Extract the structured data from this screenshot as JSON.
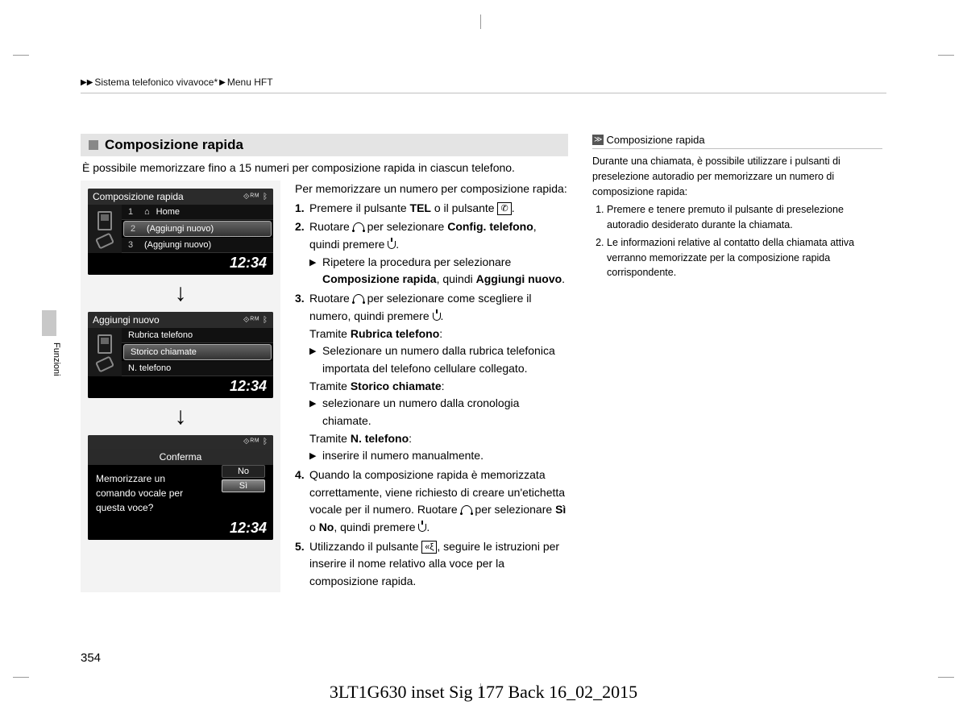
{
  "breadcrumb": {
    "a": "Sistema telefonico vivavoce*",
    "b": "Menu HFT"
  },
  "section_title": "Composizione rapida",
  "intro": "È possibile memorizzare fino a 15 numeri per composizione rapida in ciascun telefono.",
  "side_tab_label": "Funzioni",
  "page_number": "354",
  "footer": "3LT1G630 inset Sig 177 Back 16_02_2015",
  "screen1": {
    "title": "Composizione rapida",
    "icons": "⟐ᴿᴹ ᛒ",
    "r1_num": "1",
    "r1_label": "Home",
    "r2_num": "2",
    "r2_label": "(Aggiungi nuovo)",
    "r3_num": "3",
    "r3_label": "(Aggiungi nuovo)",
    "clock": "12:34"
  },
  "screen2": {
    "title": "Aggiungi nuovo",
    "icons": "⟐ᴿᴹ ᛒ",
    "r1": "Rubrica telefono",
    "r2": "Storico chiamate",
    "r3": "N. telefono",
    "clock": "12:34"
  },
  "screen3": {
    "title": "Conferma",
    "icons": "⟐ᴿᴹ ᛒ",
    "msg": "Memorizzare un comando vocale per questa voce?",
    "btn_no": "No",
    "btn_si": "Sì",
    "clock": "12:34"
  },
  "steps": {
    "lead": "Per memorizzare un numero per composizione rapida:",
    "s1_a": "Premere il pulsante ",
    "s1_b": "TEL",
    "s1_c": " o il pulsante ",
    "s2_a": "Ruotare ",
    "s2_b": " per selezionare ",
    "s2_c": "Config. telefono",
    "s2_d": ", quindi premere ",
    "s2_sub_a": "Ripetere la procedura per selezionare ",
    "s2_sub_b": "Composizione rapida",
    "s2_sub_c": ", quindi ",
    "s2_sub_d": "Aggiungi nuovo",
    "s3_a": "Ruotare ",
    "s3_b": " per selezionare come scegliere il numero, quindi premere ",
    "s3_m1_a": "Tramite ",
    "s3_m1_b": "Rubrica telefono",
    "s3_m1_sub": "Selezionare un numero dalla rubrica telefonica importata del telefono cellulare collegato.",
    "s3_m2_a": "Tramite ",
    "s3_m2_b": "Storico chiamate",
    "s3_m2_sub": "selezionare un numero dalla cronologia chiamate.",
    "s3_m3_a": "Tramite ",
    "s3_m3_b": "N. telefono",
    "s3_m3_sub": "inserire il numero manualmente.",
    "s4_a": "Quando la composizione rapida è memorizzata correttamente, viene richiesto di creare un'etichetta vocale per il numero. Ruotare ",
    "s4_b": " per selezionare ",
    "s4_c": "Sì",
    "s4_d": " o ",
    "s4_e": "No",
    "s4_f": ", quindi premere ",
    "s5_a": "Utilizzando il pulsante ",
    "s5_b": ", seguire le istruzioni per inserire il nome relativo alla voce per la composizione rapida."
  },
  "sidebar": {
    "title": "Composizione rapida",
    "p": "Durante una chiamata, è possibile utilizzare i pulsanti di preselezione autoradio per memorizzare un numero di composizione rapida:",
    "li1": "Premere e tenere premuto il pulsante di preselezione autoradio desiderato durante la chiamata.",
    "li2": "Le informazioni relative al contatto della chiamata attiva verranno memorizzate per la composizione rapida corrispondente."
  }
}
